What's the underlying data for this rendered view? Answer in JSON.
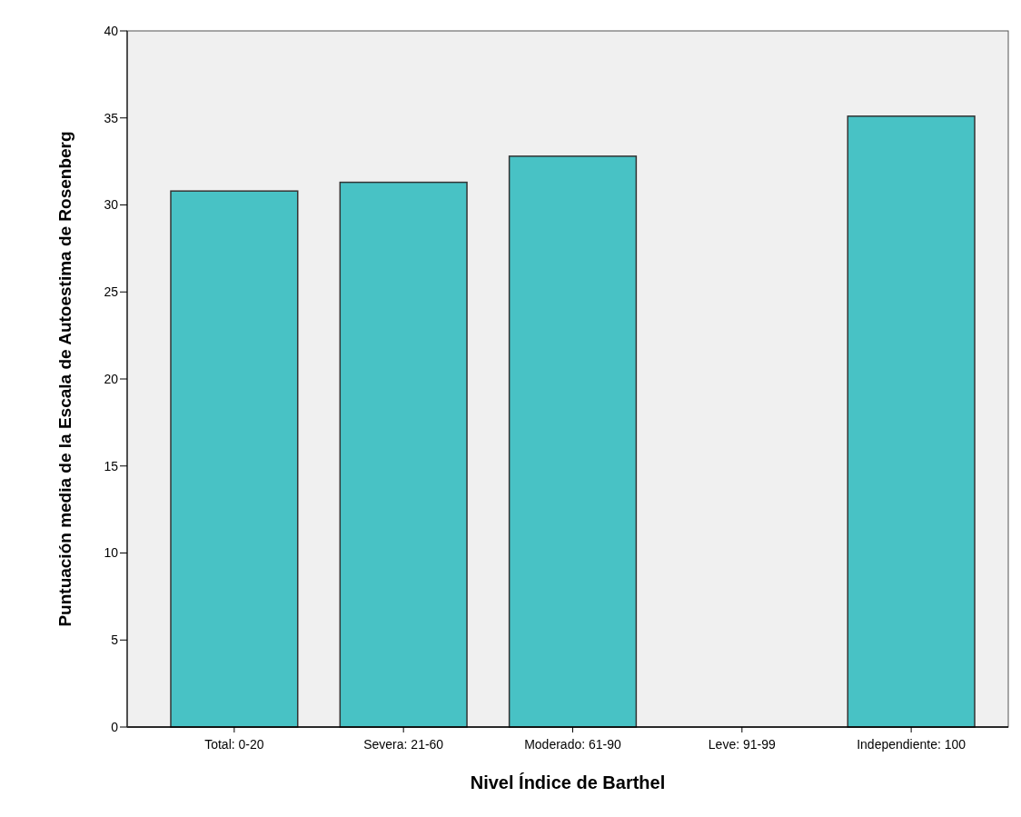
{
  "chart_data": {
    "type": "bar",
    "xlabel": "Nivel Índice de Barthel",
    "ylabel": "Puntuación media de la Escala de Autoestima de Rosenberg",
    "categories": [
      "Total: 0-20",
      "Severa: 21-60",
      "Moderado: 61-90",
      "Leve: 91-99",
      "Independiente: 100"
    ],
    "values": [
      30.8,
      31.3,
      32.8,
      null,
      35.1
    ],
    "color": "#48c2c5",
    "ylim": [
      0,
      40
    ],
    "yticks": [
      0,
      5,
      10,
      15,
      20,
      25,
      30,
      35,
      40
    ]
  }
}
